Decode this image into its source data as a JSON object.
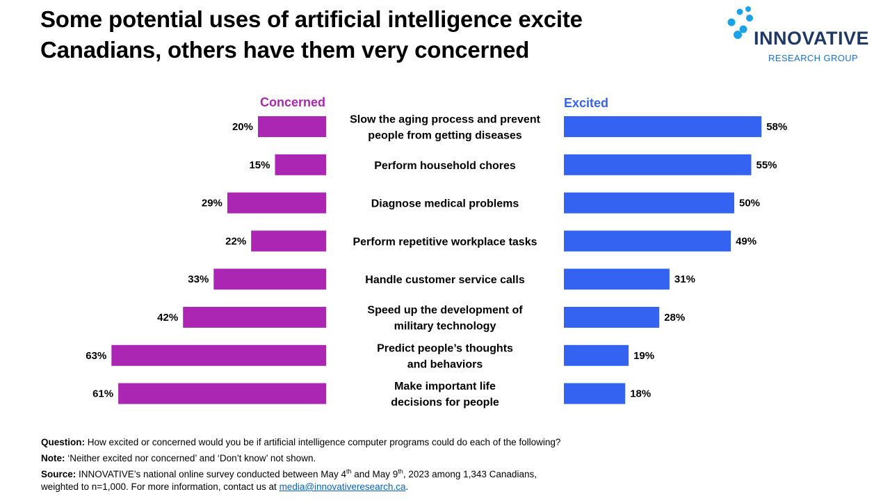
{
  "header": {
    "title_line1": "Some potential uses of artificial intelligence excite",
    "title_line2": "Canadians, others have them very concerned"
  },
  "logo": {
    "wordmark": "INNOVATIVE",
    "subtitle": "RESEARCH GROUP"
  },
  "chart_data": {
    "type": "bar",
    "orientation": "horizontal-diverging",
    "categories": [
      [
        "Slow the aging process and prevent",
        "people from getting diseases"
      ],
      [
        "Perform household chores"
      ],
      [
        "Diagnose medical problems"
      ],
      [
        "Perform repetitive workplace tasks"
      ],
      [
        "Handle customer service calls"
      ],
      [
        "Speed up the development of",
        "military technology"
      ],
      [
        "Predict people’s thoughts",
        "and behaviors"
      ],
      [
        "Make important life",
        "decisions for people"
      ]
    ],
    "series": [
      {
        "name": "Concerned",
        "color": "#ab27b3",
        "values": [
          20,
          15,
          29,
          22,
          33,
          42,
          63,
          61
        ],
        "labels": [
          "20%",
          "15%",
          "29%",
          "22%",
          "33%",
          "42%",
          "63%",
          "61%"
        ]
      },
      {
        "name": "Excited",
        "color": "#3363f0",
        "values": [
          58,
          55,
          50,
          49,
          31,
          28,
          19,
          18
        ],
        "labels": [
          "58%",
          "55%",
          "50%",
          "49%",
          "31%",
          "28%",
          "19%",
          "18%"
        ]
      }
    ],
    "unit": "%",
    "xlim": [
      0,
      63
    ],
    "grid": false,
    "legend": "column headers above bars"
  },
  "footnotes": {
    "question_label": "Question:",
    "question_text": " How excited or concerned would you be if artificial intelligence computer programs could do each of the following?",
    "note_label": "Note:",
    "note_text": " ‘Neither excited nor concerned’  and ‘Don’t know’  not shown.",
    "source_label": "Source:",
    "source_text_1": " INNOVATIVE’s national online survey conducted between May 4",
    "source_sup_1": "th",
    "source_text_2": " and May 9",
    "source_sup_2": "th",
    "source_text_3": ", 2023 among 1,343 Canadians,",
    "source_text_4": "weighted to n=1,000. For more information, contact us at ",
    "source_link": "media@innovativeresearch.ca",
    "source_end": "."
  }
}
